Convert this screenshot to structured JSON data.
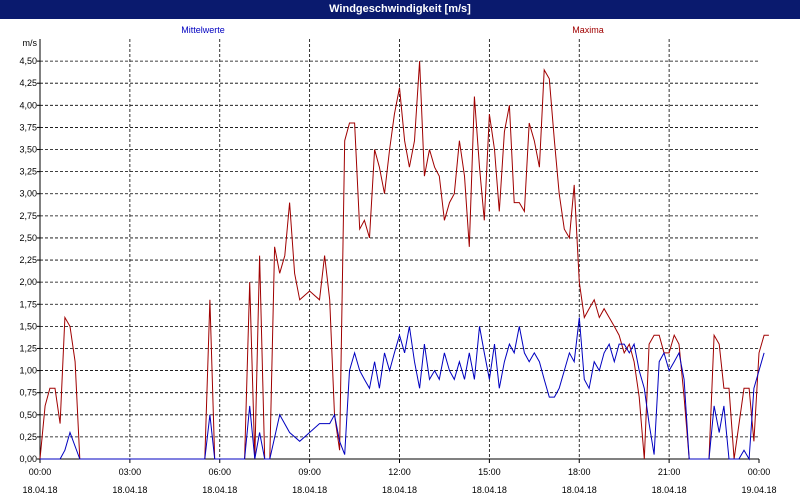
{
  "window": {
    "title": "Windgeschwindigkeit [m/s]"
  },
  "chart_data": {
    "type": "line",
    "title": "Windgeschwindigkeit [m/s]",
    "ylabel": "m/s",
    "xlabel": "",
    "ylim": [
      0,
      4.75
    ],
    "xlim_hours": [
      0,
      24
    ],
    "grid": true,
    "y_ticks": [
      "0,00",
      "0,25",
      "0,50",
      "0,75",
      "1,00",
      "1,25",
      "1,50",
      "1,75",
      "2,00",
      "2,25",
      "2,50",
      "2,75",
      "3,00",
      "3,25",
      "3,50",
      "3,75",
      "4,00",
      "4,25",
      "4,50"
    ],
    "x_ticks": [
      {
        "h": 0,
        "time": "00:00",
        "date": "18.04.18"
      },
      {
        "h": 3,
        "time": "03:00",
        "date": "18.04.18"
      },
      {
        "h": 6,
        "time": "06:00",
        "date": "18.04.18"
      },
      {
        "h": 9,
        "time": "09:00",
        "date": "18.04.18"
      },
      {
        "h": 12,
        "time": "12:00",
        "date": "18.04.18"
      },
      {
        "h": 15,
        "time": "15:00",
        "date": "18.04.18"
      },
      {
        "h": 18,
        "time": "18:00",
        "date": "18.04.18"
      },
      {
        "h": 21,
        "time": "21:00",
        "date": "18.04.18"
      },
      {
        "h": 24,
        "time": "00:00",
        "date": "19.04.18"
      }
    ],
    "series": [
      {
        "name": "Mittelwerte",
        "color": "#0000c0",
        "points": [
          [
            0,
            0
          ],
          [
            0.33,
            0
          ],
          [
            0.5,
            0
          ],
          [
            0.67,
            0
          ],
          [
            0.83,
            0.1
          ],
          [
            1,
            0.3
          ],
          [
            1.33,
            0
          ],
          [
            5.5,
            0
          ],
          [
            5.67,
            0.5
          ],
          [
            5.83,
            0
          ],
          [
            6.83,
            0
          ],
          [
            7,
            0.6
          ],
          [
            7.17,
            0
          ],
          [
            7.33,
            0.3
          ],
          [
            7.5,
            0
          ],
          [
            7.67,
            0
          ],
          [
            8,
            0.5
          ],
          [
            8.33,
            0.3
          ],
          [
            8.67,
            0.2
          ],
          [
            9,
            0.3
          ],
          [
            9.33,
            0.4
          ],
          [
            9.67,
            0.4
          ],
          [
            9.83,
            0.5
          ],
          [
            10,
            0.2
          ],
          [
            10.17,
            0.05
          ],
          [
            10.33,
            1
          ],
          [
            10.5,
            1.2
          ],
          [
            10.67,
            1
          ],
          [
            10.83,
            0.9
          ],
          [
            11,
            0.8
          ],
          [
            11.17,
            1.1
          ],
          [
            11.33,
            0.8
          ],
          [
            11.5,
            1.2
          ],
          [
            11.67,
            1
          ],
          [
            11.83,
            1.2
          ],
          [
            12,
            1.4
          ],
          [
            12.17,
            1.2
          ],
          [
            12.33,
            1.5
          ],
          [
            12.5,
            1.1
          ],
          [
            12.67,
            0.8
          ],
          [
            12.83,
            1.3
          ],
          [
            13,
            0.9
          ],
          [
            13.17,
            1
          ],
          [
            13.33,
            0.9
          ],
          [
            13.5,
            1.2
          ],
          [
            13.67,
            1
          ],
          [
            13.83,
            0.9
          ],
          [
            14,
            1.1
          ],
          [
            14.17,
            0.9
          ],
          [
            14.33,
            1.2
          ],
          [
            14.5,
            0.9
          ],
          [
            14.67,
            1.5
          ],
          [
            14.83,
            1.2
          ],
          [
            15,
            0.9
          ],
          [
            15.17,
            1.3
          ],
          [
            15.33,
            0.8
          ],
          [
            15.5,
            1.1
          ],
          [
            15.67,
            1.3
          ],
          [
            15.83,
            1.2
          ],
          [
            16,
            1.5
          ],
          [
            16.17,
            1.2
          ],
          [
            16.33,
            1.1
          ],
          [
            16.5,
            1.2
          ],
          [
            16.67,
            1.1
          ],
          [
            16.83,
            0.9
          ],
          [
            17,
            0.7
          ],
          [
            17.17,
            0.7
          ],
          [
            17.33,
            0.8
          ],
          [
            17.5,
            1
          ],
          [
            17.67,
            1.2
          ],
          [
            17.83,
            1.1
          ],
          [
            18,
            1.6
          ],
          [
            18.17,
            0.9
          ],
          [
            18.33,
            0.8
          ],
          [
            18.5,
            1.1
          ],
          [
            18.67,
            1
          ],
          [
            18.83,
            1.2
          ],
          [
            19,
            1.3
          ],
          [
            19.17,
            1.1
          ],
          [
            19.33,
            1.3
          ],
          [
            19.5,
            1.3
          ],
          [
            19.67,
            1.2
          ],
          [
            19.83,
            1.3
          ],
          [
            20,
            1
          ],
          [
            20.17,
            0.8
          ],
          [
            20.33,
            0.4
          ],
          [
            20.5,
            0.05
          ],
          [
            20.67,
            1.1
          ],
          [
            20.83,
            1.2
          ],
          [
            21,
            1
          ],
          [
            21.17,
            1.1
          ],
          [
            21.33,
            1.2
          ],
          [
            21.5,
            0.9
          ],
          [
            21.67,
            0
          ],
          [
            22.33,
            0
          ],
          [
            22.5,
            0.6
          ],
          [
            22.67,
            0.3
          ],
          [
            22.83,
            0.6
          ],
          [
            23,
            0
          ],
          [
            23.33,
            0
          ],
          [
            23.5,
            0.1
          ],
          [
            23.67,
            0
          ],
          [
            23.83,
            0.8
          ],
          [
            24,
            1
          ],
          [
            24.17,
            1.2
          ]
        ]
      },
      {
        "name": "Maxima",
        "color": "#a00000",
        "points": [
          [
            0,
            0
          ],
          [
            0.17,
            0.6
          ],
          [
            0.33,
            0.8
          ],
          [
            0.5,
            0.8
          ],
          [
            0.67,
            0.4
          ],
          [
            0.83,
            1.6
          ],
          [
            1,
            1.5
          ],
          [
            1.17,
            1.1
          ],
          [
            1.33,
            0
          ],
          [
            5.5,
            0
          ],
          [
            5.67,
            1.8
          ],
          [
            5.83,
            0
          ],
          [
            6.83,
            0
          ],
          [
            7,
            2
          ],
          [
            7.17,
            0
          ],
          [
            7.33,
            2.3
          ],
          [
            7.5,
            0
          ],
          [
            7.67,
            0
          ],
          [
            7.83,
            2.4
          ],
          [
            8,
            2.1
          ],
          [
            8.17,
            2.3
          ],
          [
            8.33,
            2.9
          ],
          [
            8.5,
            2.1
          ],
          [
            8.67,
            1.8
          ],
          [
            9,
            1.9
          ],
          [
            9.33,
            1.8
          ],
          [
            9.5,
            2.3
          ],
          [
            9.67,
            1.8
          ],
          [
            9.83,
            0.5
          ],
          [
            10,
            0.1
          ],
          [
            10.17,
            3.6
          ],
          [
            10.33,
            3.8
          ],
          [
            10.5,
            3.8
          ],
          [
            10.67,
            2.6
          ],
          [
            10.83,
            2.7
          ],
          [
            11,
            2.5
          ],
          [
            11.17,
            3.5
          ],
          [
            11.33,
            3.3
          ],
          [
            11.5,
            3
          ],
          [
            11.67,
            3.5
          ],
          [
            11.83,
            3.9
          ],
          [
            12,
            4.2
          ],
          [
            12.17,
            3.6
          ],
          [
            12.33,
            3.3
          ],
          [
            12.5,
            3.6
          ],
          [
            12.67,
            4.5
          ],
          [
            12.83,
            3.2
          ],
          [
            13,
            3.5
          ],
          [
            13.17,
            3.3
          ],
          [
            13.33,
            3.2
          ],
          [
            13.5,
            2.7
          ],
          [
            13.67,
            2.9
          ],
          [
            13.83,
            3
          ],
          [
            14,
            3.6
          ],
          [
            14.17,
            3.2
          ],
          [
            14.33,
            2.4
          ],
          [
            14.5,
            4.1
          ],
          [
            14.67,
            3.3
          ],
          [
            14.83,
            2.7
          ],
          [
            15,
            3.9
          ],
          [
            15.17,
            3.5
          ],
          [
            15.33,
            2.8
          ],
          [
            15.5,
            3.7
          ],
          [
            15.67,
            4
          ],
          [
            15.83,
            2.9
          ],
          [
            16,
            2.9
          ],
          [
            16.17,
            2.8
          ],
          [
            16.33,
            3.8
          ],
          [
            16.5,
            3.6
          ],
          [
            16.67,
            3.3
          ],
          [
            16.83,
            4.4
          ],
          [
            17,
            4.3
          ],
          [
            17.17,
            3.6
          ],
          [
            17.33,
            3
          ],
          [
            17.5,
            2.6
          ],
          [
            17.67,
            2.5
          ],
          [
            17.83,
            3.1
          ],
          [
            18,
            2
          ],
          [
            18.17,
            1.6
          ],
          [
            18.33,
            1.7
          ],
          [
            18.5,
            1.8
          ],
          [
            18.67,
            1.6
          ],
          [
            18.83,
            1.7
          ],
          [
            19,
            1.6
          ],
          [
            19.17,
            1.5
          ],
          [
            19.33,
            1.4
          ],
          [
            19.5,
            1.2
          ],
          [
            19.67,
            1.3
          ],
          [
            19.83,
            1.1
          ],
          [
            20,
            0.7
          ],
          [
            20.17,
            0
          ],
          [
            20.33,
            1.3
          ],
          [
            20.5,
            1.4
          ],
          [
            20.67,
            1.4
          ],
          [
            20.83,
            1.2
          ],
          [
            21,
            1.2
          ],
          [
            21.17,
            1.4
          ],
          [
            21.33,
            1.3
          ],
          [
            21.5,
            0.7
          ],
          [
            21.67,
            0
          ],
          [
            22.33,
            0
          ],
          [
            22.5,
            1.4
          ],
          [
            22.67,
            1.3
          ],
          [
            22.83,
            0.8
          ],
          [
            23,
            0.8
          ],
          [
            23.17,
            0
          ],
          [
            23.5,
            0.8
          ],
          [
            23.67,
            0.8
          ],
          [
            23.83,
            0.2
          ],
          [
            24,
            1.2
          ],
          [
            24.17,
            1.4
          ],
          [
            24.33,
            1.4
          ]
        ]
      }
    ]
  }
}
